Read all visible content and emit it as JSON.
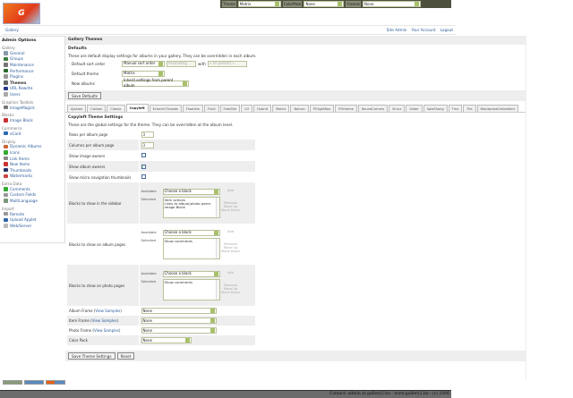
{
  "topbar": {
    "theme_label": "Theme",
    "theme_value": "Matrix",
    "colorpack_label": "ColorPack",
    "colorpack_value": "None",
    "frames_label": "Frames",
    "frames_value": "None"
  },
  "logo": "Gallery",
  "nav": {
    "breadcrumb": "Gallery",
    "links": [
      "Site Admin",
      "Your Account",
      "Logout"
    ]
  },
  "sidebar": {
    "title": "Admin Options",
    "groups": [
      {
        "label": "Gallery",
        "items": [
          {
            "label": "General",
            "icon": "general-icon",
            "color": "#8899aa"
          },
          {
            "label": "Groups",
            "icon": "groups-icon",
            "color": "#3a7a3a"
          },
          {
            "label": "Maintenance",
            "icon": "maintenance-icon",
            "color": "#777"
          },
          {
            "label": "Performance",
            "icon": "performance-icon",
            "color": "#2a6a2a"
          },
          {
            "label": "Plugins",
            "icon": "plugins-icon",
            "color": "#999"
          },
          {
            "label": "Themes",
            "icon": "themes-icon",
            "color": "#666",
            "active": true
          },
          {
            "label": "URL Rewrite",
            "icon": "url-rewrite-icon",
            "color": "#2a3a8a"
          },
          {
            "label": "Users",
            "icon": "users-icon",
            "color": "#aaa"
          }
        ]
      },
      {
        "label": "Graphics Toolkits",
        "items": [
          {
            "label": "ImageMagick",
            "icon": "imagemagick-icon",
            "color": "#777"
          }
        ]
      },
      {
        "label": "Blocks",
        "items": [
          {
            "label": "Image Block",
            "icon": "image-block-icon",
            "color": "#c33"
          }
        ]
      },
      {
        "label": "Commerce",
        "items": [
          {
            "label": "eCard",
            "icon": "ecard-icon",
            "color": "#2a6ab0"
          }
        ]
      },
      {
        "label": "Display",
        "items": [
          {
            "label": "Dynamic Albums",
            "icon": "dynamic-albums-icon",
            "color": "#c63"
          },
          {
            "label": "Icons",
            "icon": "icons-icon",
            "color": "#3a3"
          },
          {
            "label": "Link Items",
            "icon": "link-items-icon",
            "color": "#888"
          },
          {
            "label": "New Items",
            "icon": "new-items-icon",
            "color": "#c33"
          },
          {
            "label": "Thumbnails",
            "icon": "thumbnails-icon",
            "color": "#236"
          },
          {
            "label": "Watermarks",
            "icon": "watermarks-icon",
            "color": "#c44"
          }
        ]
      },
      {
        "label": "Extra Data",
        "items": [
          {
            "label": "Comments",
            "icon": "comments-icon",
            "color": "#3a3"
          },
          {
            "label": "Custom Fields",
            "icon": "custom-fields-icon",
            "color": "#999"
          },
          {
            "label": "MultiLanguage",
            "icon": "multilanguage-icon",
            "color": "#7a9a7a"
          }
        ]
      },
      {
        "label": "Import",
        "items": [
          {
            "label": "Remote",
            "icon": "remote-icon",
            "color": "#999"
          },
          {
            "label": "Upload Applet",
            "icon": "upload-applet-icon",
            "color": "#36a"
          },
          {
            "label": "Web/Server",
            "icon": "web-server-icon",
            "color": "#bbb"
          }
        ]
      }
    ]
  },
  "main": {
    "title": "Gallery Themes",
    "defaults": {
      "heading": "Defaults",
      "description": "These are default display settings for albums in your gallery. They can be overridden in each album.",
      "sort_label": "Default sort order",
      "sort_value": "Manual sort order",
      "sort_dir": "Ascending",
      "with_label": "with",
      "presort": "« no presort »",
      "theme_label": "Default theme",
      "theme_value": "Matrix",
      "new_label": "New albums",
      "new_value": "Inherit settings from parent album",
      "save": "Save Defaults"
    },
    "tabs": [
      "Ajaxian",
      "Carbon",
      "Classic",
      "Copyleft",
      "EclecticThreads",
      "Floatrite",
      "Fluid",
      "FotoSite",
      "G2",
      "Hybrid",
      "Matrix",
      "Nature",
      "PGlightBox",
      "PGtheme",
      "RoundCorners",
      "Siriux",
      "Slider",
      "SplaShang",
      "Tms",
      "Tile",
      "WordpressEmbedded"
    ],
    "active_tab": "Copyleft",
    "theme": {
      "heading": "Copyleft Theme Settings",
      "description": "These are the global settings for the theme. They can be overridden at the album level.",
      "rows_label": "Rows per album page",
      "rows_value": "3",
      "cols_label": "Columns per album page",
      "cols_value": "3",
      "img_owners_label": "Show image owners",
      "img_owners": false,
      "album_owners_label": "Show album owners",
      "album_owners": true,
      "micro_label": "Show micro navigation thumbnails",
      "micro": false,
      "available_label": "Available",
      "selected_label": "Selected",
      "choose": "Choose a block",
      "add": "Add",
      "remove": "Remove",
      "up": "Move Up",
      "down": "Move Down",
      "sidebar_label": "Blocks to show in the sidebar",
      "sidebar_blocks": [
        "Item actions",
        "Links to album/photo peers",
        "Image Block"
      ],
      "album_label": "Blocks to show on album pages",
      "album_blocks": [
        "Show comments"
      ],
      "photo_label": "Blocks to show on photo pages",
      "photo_blocks": [
        "Show comments"
      ],
      "album_frame_label": "Album Frame",
      "item_frame_label": "Item Frame",
      "photo_frame_label": "Photo Frame",
      "view_samples": "View Samples",
      "color_pack_label": "Color Pack",
      "none": "None",
      "save": "Save Theme Settings",
      "reset": "Reset"
    }
  },
  "badges": [
    "W3C XHTML 1.0",
    "GALLERY 2",
    "MADE WITH GALLERY"
  ],
  "footer": "Contact: admin at gallery2.hu - www.gallery2.hu - (c) 2006"
}
